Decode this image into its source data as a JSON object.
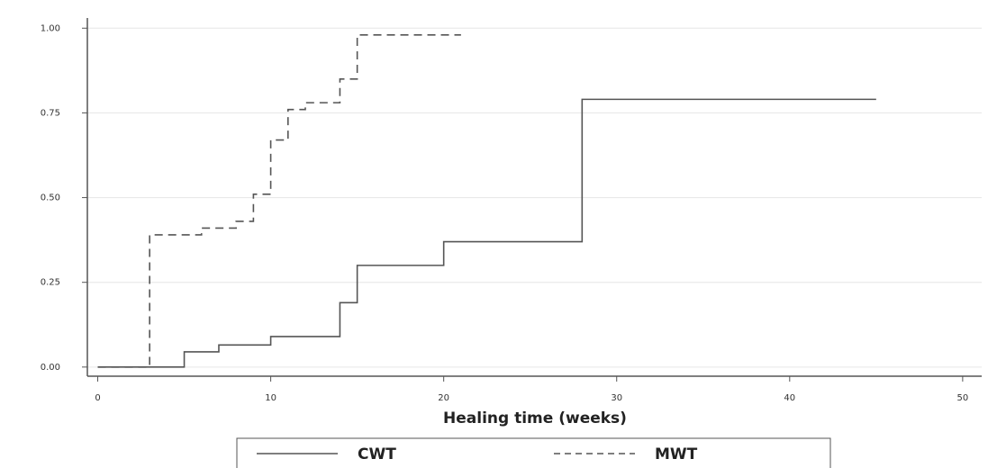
{
  "chart_data": {
    "type": "step",
    "x_label": "Healing time (weeks)",
    "xlim": [
      -0.6,
      51.1
    ],
    "xticks": [
      0,
      10,
      20,
      30,
      40,
      50
    ],
    "ylim": [
      -0.027,
      1.03
    ],
    "yticks": [
      {
        "value": 0,
        "label": "0.00"
      },
      {
        "value": 0.25,
        "label": "0.25"
      },
      {
        "value": 0.5,
        "label": "0.50"
      },
      {
        "value": 0.75,
        "label": "0.75"
      },
      {
        "value": 1,
        "label": "1.00"
      }
    ],
    "grid": true,
    "legend": "bottom",
    "series": [
      {
        "name": "CWT",
        "color": "#555555",
        "style": "solid",
        "x": [
          0,
          5,
          7,
          10,
          14,
          15,
          20,
          28,
          45
        ],
        "values": [
          0,
          0.045,
          0.065,
          0.09,
          0.19,
          0.3,
          0.37,
          0.79,
          0.79
        ]
      },
      {
        "name": "MWT",
        "color": "#555555",
        "style": "dashed",
        "x": [
          0,
          3,
          6,
          8,
          9,
          10,
          11,
          12,
          14,
          15,
          21
        ],
        "values": [
          0,
          0.39,
          0.41,
          0.43,
          0.51,
          0.67,
          0.76,
          0.78,
          0.85,
          0.98,
          0.98
        ]
      }
    ]
  }
}
